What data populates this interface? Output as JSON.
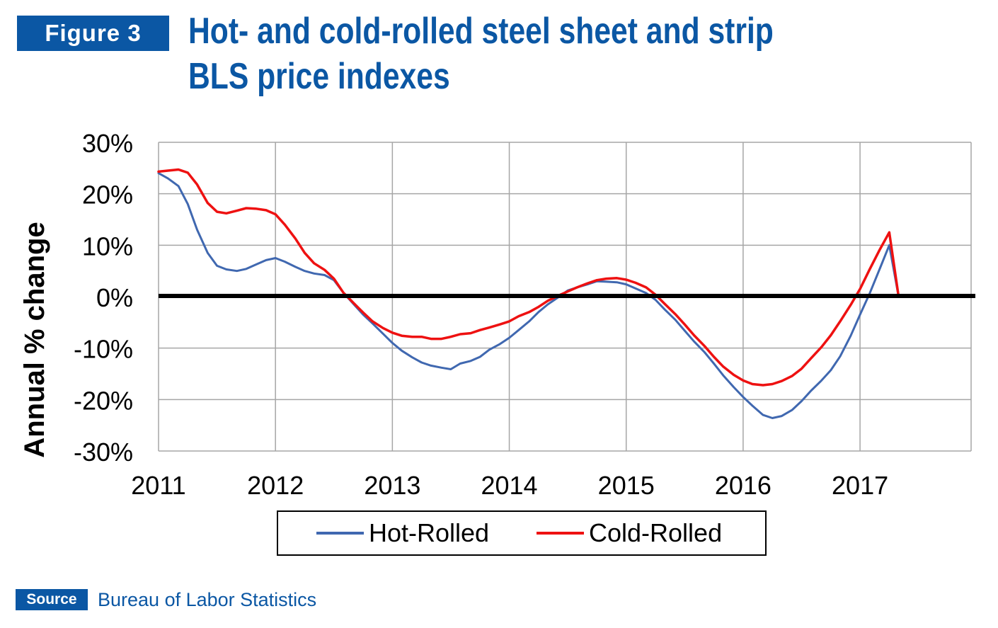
{
  "header": {
    "figure_label": "Figure 3",
    "title_line1": "Hot- and cold-rolled steel sheet and strip",
    "title_line2": "BLS price indexes"
  },
  "footer": {
    "source_label": "Source",
    "source_text": "Bureau of Labor Statistics"
  },
  "colors": {
    "brand_blue": "#0b57a4",
    "hot_rolled": "#4068b0",
    "cold_rolled": "#ee1111",
    "zero_line": "#000000",
    "grid": "#a6a6a6"
  },
  "chart_data": {
    "type": "line",
    "title": "Hot- and cold-rolled steel sheet and strip BLS price indexes",
    "xlabel": "",
    "ylabel": "Annual % change",
    "xlim": [
      2011,
      2017.95
    ],
    "ylim": [
      -30,
      30
    ],
    "x_ticks": [
      2011,
      2012,
      2013,
      2014,
      2015,
      2016,
      2017
    ],
    "x_tick_labels": [
      "2011",
      "2012",
      "2013",
      "2014",
      "2015",
      "2016",
      "2017"
    ],
    "y_ticks": [
      30,
      20,
      10,
      0,
      -10,
      -20,
      -30
    ],
    "y_tick_labels": [
      "30%",
      "20%",
      "10%",
      "0%",
      "-10%",
      "-20%",
      "-30%"
    ],
    "grid": true,
    "legend_position": "bottom-center",
    "series": [
      {
        "name": "Hot-Rolled",
        "points": [
          [
            2011.0,
            24
          ],
          [
            2011.08,
            23
          ],
          [
            2011.17,
            21.5
          ],
          [
            2011.25,
            18
          ],
          [
            2011.33,
            13
          ],
          [
            2011.42,
            8.5
          ],
          [
            2011.5,
            6
          ],
          [
            2011.58,
            5.3
          ],
          [
            2011.67,
            5
          ],
          [
            2011.75,
            5.4
          ],
          [
            2011.83,
            6.2
          ],
          [
            2011.92,
            7.1
          ],
          [
            2012.0,
            7.5
          ],
          [
            2012.08,
            6.8
          ],
          [
            2012.17,
            5.8
          ],
          [
            2012.25,
            5
          ],
          [
            2012.33,
            4.5
          ],
          [
            2012.42,
            4.2
          ],
          [
            2012.5,
            3.2
          ],
          [
            2012.58,
            0.8
          ],
          [
            2012.67,
            -1.5
          ],
          [
            2012.75,
            -3.5
          ],
          [
            2012.83,
            -5.2
          ],
          [
            2012.92,
            -7.2
          ],
          [
            2013.0,
            -9
          ],
          [
            2013.08,
            -10.5
          ],
          [
            2013.17,
            -11.8
          ],
          [
            2013.25,
            -12.8
          ],
          [
            2013.33,
            -13.4
          ],
          [
            2013.42,
            -13.8
          ],
          [
            2013.5,
            -14.1
          ],
          [
            2013.58,
            -13
          ],
          [
            2013.67,
            -12.5
          ],
          [
            2013.75,
            -11.7
          ],
          [
            2013.83,
            -10.3
          ],
          [
            2013.92,
            -9.2
          ],
          [
            2014.0,
            -8
          ],
          [
            2014.08,
            -6.5
          ],
          [
            2014.17,
            -4.8
          ],
          [
            2014.25,
            -3
          ],
          [
            2014.33,
            -1.5
          ],
          [
            2014.42,
            -0.1
          ],
          [
            2014.5,
            1.2
          ],
          [
            2014.58,
            1.8
          ],
          [
            2014.67,
            2.4
          ],
          [
            2014.75,
            3
          ],
          [
            2014.83,
            2.9
          ],
          [
            2014.92,
            2.8
          ],
          [
            2015.0,
            2.4
          ],
          [
            2015.08,
            1.6
          ],
          [
            2015.17,
            0.7
          ],
          [
            2015.25,
            -0.6
          ],
          [
            2015.33,
            -2.5
          ],
          [
            2015.42,
            -4.5
          ],
          [
            2015.5,
            -6.6
          ],
          [
            2015.58,
            -8.7
          ],
          [
            2015.67,
            -10.8
          ],
          [
            2015.75,
            -13
          ],
          [
            2015.83,
            -15.3
          ],
          [
            2015.92,
            -17.6
          ],
          [
            2016.0,
            -19.5
          ],
          [
            2016.08,
            -21.2
          ],
          [
            2016.17,
            -23
          ],
          [
            2016.25,
            -23.6
          ],
          [
            2016.33,
            -23.2
          ],
          [
            2016.42,
            -22
          ],
          [
            2016.5,
            -20.3
          ],
          [
            2016.58,
            -18.3
          ],
          [
            2016.67,
            -16.3
          ],
          [
            2016.75,
            -14.3
          ],
          [
            2016.83,
            -11.6
          ],
          [
            2016.92,
            -7.6
          ],
          [
            2017.0,
            -3.5
          ],
          [
            2017.08,
            0.5
          ],
          [
            2017.17,
            5.5
          ],
          [
            2017.25,
            10
          ],
          [
            2017.33,
            0
          ],
          [
            2017.42,
            0
          ],
          [
            2017.5,
            0
          ],
          [
            2017.58,
            0
          ],
          [
            2017.67,
            0
          ],
          [
            2017.75,
            0
          ],
          [
            2017.83,
            0
          ],
          [
            2017.92,
            0
          ]
        ]
      },
      {
        "name": "Cold-Rolled",
        "points": [
          [
            2011.0,
            24.3
          ],
          [
            2011.08,
            24.5
          ],
          [
            2011.17,
            24.7
          ],
          [
            2011.25,
            24.1
          ],
          [
            2011.33,
            21.8
          ],
          [
            2011.42,
            18.2
          ],
          [
            2011.5,
            16.5
          ],
          [
            2011.58,
            16.2
          ],
          [
            2011.67,
            16.7
          ],
          [
            2011.75,
            17.2
          ],
          [
            2011.83,
            17.1
          ],
          [
            2011.92,
            16.8
          ],
          [
            2012.0,
            16
          ],
          [
            2012.08,
            14
          ],
          [
            2012.17,
            11.3
          ],
          [
            2012.25,
            8.5
          ],
          [
            2012.33,
            6.5
          ],
          [
            2012.42,
            5.2
          ],
          [
            2012.5,
            3.5
          ],
          [
            2012.58,
            0.8
          ],
          [
            2012.67,
            -1.3
          ],
          [
            2012.75,
            -3.1
          ],
          [
            2012.83,
            -4.8
          ],
          [
            2012.92,
            -6.1
          ],
          [
            2013.0,
            -7
          ],
          [
            2013.08,
            -7.6
          ],
          [
            2013.17,
            -7.8
          ],
          [
            2013.25,
            -7.8
          ],
          [
            2013.33,
            -8.2
          ],
          [
            2013.42,
            -8.2
          ],
          [
            2013.5,
            -7.8
          ],
          [
            2013.58,
            -7.3
          ],
          [
            2013.67,
            -7.1
          ],
          [
            2013.75,
            -6.5
          ],
          [
            2013.83,
            -6
          ],
          [
            2013.92,
            -5.4
          ],
          [
            2014.0,
            -4.8
          ],
          [
            2014.08,
            -3.8
          ],
          [
            2014.17,
            -3
          ],
          [
            2014.25,
            -2
          ],
          [
            2014.33,
            -0.8
          ],
          [
            2014.42,
            0.2
          ],
          [
            2014.5,
            1
          ],
          [
            2014.58,
            1.8
          ],
          [
            2014.67,
            2.6
          ],
          [
            2014.75,
            3.2
          ],
          [
            2014.83,
            3.5
          ],
          [
            2014.92,
            3.6
          ],
          [
            2015.0,
            3.3
          ],
          [
            2015.08,
            2.7
          ],
          [
            2015.17,
            1.8
          ],
          [
            2015.25,
            0.4
          ],
          [
            2015.33,
            -1.4
          ],
          [
            2015.42,
            -3.4
          ],
          [
            2015.5,
            -5.4
          ],
          [
            2015.58,
            -7.5
          ],
          [
            2015.67,
            -9.6
          ],
          [
            2015.75,
            -11.7
          ],
          [
            2015.83,
            -13.6
          ],
          [
            2015.92,
            -15.2
          ],
          [
            2016.0,
            -16.3
          ],
          [
            2016.08,
            -17
          ],
          [
            2016.17,
            -17.2
          ],
          [
            2016.25,
            -17
          ],
          [
            2016.33,
            -16.4
          ],
          [
            2016.42,
            -15.4
          ],
          [
            2016.5,
            -14
          ],
          [
            2016.58,
            -12
          ],
          [
            2016.67,
            -9.8
          ],
          [
            2016.75,
            -7.5
          ],
          [
            2016.83,
            -4.8
          ],
          [
            2016.92,
            -1.6
          ],
          [
            2017.0,
            1.5
          ],
          [
            2017.08,
            5.2
          ],
          [
            2017.17,
            9.2
          ],
          [
            2017.25,
            12.5
          ],
          [
            2017.33,
            0
          ],
          [
            2017.42,
            0
          ],
          [
            2017.5,
            0
          ],
          [
            2017.58,
            0
          ],
          [
            2017.67,
            0
          ],
          [
            2017.75,
            0
          ],
          [
            2017.83,
            0
          ],
          [
            2017.92,
            0
          ]
        ]
      }
    ]
  }
}
